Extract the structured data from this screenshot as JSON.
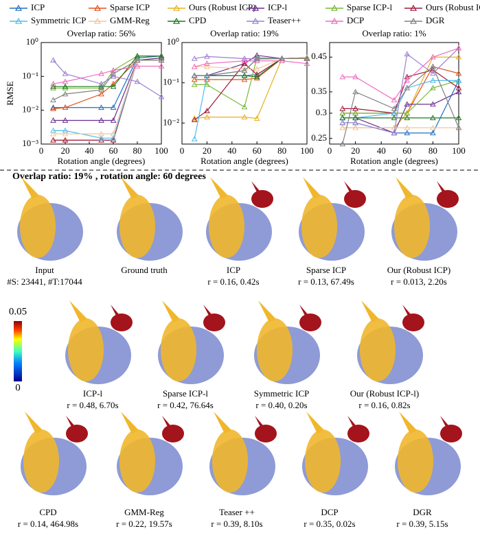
{
  "chart_data": [
    {
      "type": "line",
      "title": "Overlap ratio: 56%",
      "y_label": "RMSE",
      "x_label": "Rotation angle (degrees)",
      "log_y": true,
      "x": [
        10,
        20,
        50,
        60,
        80,
        100
      ],
      "xlim": [
        0,
        100
      ],
      "xticks": [
        0,
        20,
        40,
        60,
        80,
        100
      ],
      "ylim": [
        0.001,
        1
      ],
      "yticks": [
        {
          "value": 0.001,
          "label": "10⁻³"
        },
        {
          "value": 0.01,
          "label": "10⁻²"
        },
        {
          "value": 0.1,
          "label": "10⁻¹"
        },
        {
          "value": 1,
          "label": "10⁰"
        }
      ],
      "series": [
        {
          "name": "ICP",
          "color": "#1f6fc0",
          "values": [
            0.012,
            0.012,
            0.012,
            0.012,
            0.35,
            0.4
          ]
        },
        {
          "name": "Sparse ICP",
          "color": "#e0521e",
          "values": [
            0.011,
            0.012,
            0.03,
            0.06,
            0.3,
            0.35
          ]
        },
        {
          "name": "Ours (Robust ICP)",
          "color": "#e8b020",
          "values": [
            0.0013,
            0.0013,
            0.0013,
            0.0013,
            0.3,
            0.3
          ]
        },
        {
          "name": "ICP-l",
          "color": "#6a2d8f",
          "values": [
            0.005,
            0.005,
            0.005,
            0.005,
            0.3,
            0.35
          ]
        },
        {
          "name": "Sparse ICP-l",
          "color": "#78b83a",
          "values": [
            0.045,
            0.045,
            0.045,
            0.15,
            0.4,
            0.4
          ]
        },
        {
          "name": "Ours (Robust ICP-l)",
          "color": "#a0183a",
          "values": [
            0.0013,
            0.0013,
            0.0013,
            0.0013,
            0.3,
            0.3
          ]
        },
        {
          "name": "Symmetric ICP",
          "color": "#4dbeee",
          "values": [
            0.0025,
            0.0025,
            0.0015,
            0.0015,
            0.3,
            0.3
          ]
        },
        {
          "name": "GMM-Reg",
          "color": "#f5c49a",
          "values": [
            0.002,
            0.002,
            0.002,
            0.002,
            0.3,
            0.3
          ]
        },
        {
          "name": "CPD",
          "color": "#1a7a1a",
          "values": [
            0.05,
            0.05,
            0.05,
            0.05,
            0.4,
            0.4
          ]
        },
        {
          "name": "Teaser++",
          "color": "#9a80d0",
          "values": [
            0.3,
            0.12,
            0.06,
            0.1,
            0.07,
            0.025
          ]
        },
        {
          "name": "DCP",
          "color": "#f06cc0",
          "values": [
            0.06,
            0.07,
            0.12,
            0.15,
            0.2,
            0.2
          ]
        },
        {
          "name": "DGR",
          "color": "#808080",
          "values": [
            0.02,
            0.03,
            0.04,
            0.12,
            0.3,
            0.3
          ]
        }
      ]
    },
    {
      "type": "line",
      "title": "Overlap ratio: 19%",
      "x_label": "Rotation angle (degrees)",
      "log_y": true,
      "x": [
        10,
        20,
        50,
        60,
        80,
        100
      ],
      "xlim": [
        0,
        100
      ],
      "xticks": [
        0,
        20,
        40,
        60,
        80,
        100
      ],
      "ylim": [
        0.003,
        1
      ],
      "yticks": [
        {
          "value": 0.01,
          "label": "10⁻²"
        },
        {
          "value": 0.1,
          "label": "10⁻¹"
        },
        {
          "value": 1,
          "label": "10⁰"
        }
      ],
      "series": [
        {
          "values": [
            0.15,
            0.15,
            0.15,
            0.16,
            0.4,
            0.42
          ]
        },
        {
          "values": [
            0.12,
            0.12,
            0.12,
            0.13,
            0.4,
            0.42
          ]
        },
        {
          "values": [
            0.013,
            0.014,
            0.014,
            0.013,
            0.4,
            0.42
          ]
        },
        {
          "values": [
            0.15,
            0.15,
            0.3,
            0.48,
            0.4,
            0.4
          ]
        },
        {
          "values": [
            0.09,
            0.09,
            0.025,
            0.42,
            0.4,
            0.4
          ]
        },
        {
          "values": [
            0.012,
            0.02,
            0.3,
            0.16,
            0.4,
            0.4
          ]
        },
        {
          "values": [
            0.004,
            0.15,
            0.2,
            0.4,
            0.4,
            0.4
          ]
        },
        {
          "values": [
            0.25,
            0.25,
            0.22,
            0.22,
            0.4,
            0.4
          ]
        },
        {
          "values": [
            0.15,
            0.15,
            0.15,
            0.14,
            0.4,
            0.4
          ]
        },
        {
          "values": [
            0.4,
            0.45,
            0.4,
            0.39,
            0.4,
            0.4
          ]
        },
        {
          "values": [
            0.25,
            0.3,
            0.35,
            0.35,
            0.35,
            0.3
          ]
        },
        {
          "values": [
            0.15,
            0.15,
            0.2,
            0.39,
            0.4,
            0.4
          ]
        }
      ]
    },
    {
      "type": "line",
      "title": "Overlap ratio: 1%",
      "x_label": "Rotation angle (degrees)",
      "log_y": true,
      "x": [
        10,
        20,
        50,
        60,
        80,
        100
      ],
      "xlim": [
        0,
        100
      ],
      "xticks": [
        0,
        20,
        40,
        60,
        80,
        100
      ],
      "ylim": [
        0.24,
        0.5
      ],
      "yticks": [
        0.25,
        0.3,
        0.35,
        0.45
      ],
      "series": [
        {
          "values": [
            0.28,
            0.28,
            0.26,
            0.26,
            0.26,
            0.38
          ]
        },
        {
          "values": [
            0.3,
            0.3,
            0.3,
            0.3,
            0.42,
            0.4
          ]
        },
        {
          "values": [
            0.27,
            0.27,
            0.27,
            0.3,
            0.45,
            0.45
          ]
        },
        {
          "values": [
            0.29,
            0.29,
            0.26,
            0.32,
            0.32,
            0.35
          ]
        },
        {
          "values": [
            0.3,
            0.3,
            0.3,
            0.3,
            0.36,
            0.38
          ]
        },
        {
          "values": [
            0.31,
            0.31,
            0.3,
            0.39,
            0.41,
            0.36
          ]
        },
        {
          "values": [
            0.29,
            0.29,
            0.3,
            0.36,
            0.38,
            0.38
          ]
        },
        {
          "values": [
            0.27,
            0.27,
            0.27,
            0.27,
            0.27,
            0.27
          ]
        },
        {
          "values": [
            0.29,
            0.29,
            0.29,
            0.29,
            0.29,
            0.29
          ]
        },
        {
          "values": [
            0.28,
            0.28,
            0.26,
            0.46,
            0.4,
            0.48
          ]
        },
        {
          "values": [
            0.39,
            0.39,
            0.33,
            0.38,
            0.45,
            0.48
          ]
        },
        {
          "values": [
            0.24,
            0.35,
            0.31,
            0.36,
            0.42,
            0.27
          ]
        }
      ]
    }
  ],
  "figure": {
    "heading": "Overlap ratio: 19% , rotation angle: 60 degrees",
    "colorbar": {
      "max": 0.05,
      "min": 0
    },
    "panels": [
      {
        "label": "Input",
        "result": "#S: 23441, #T:17044"
      },
      {
        "label": "Ground truth"
      },
      {
        "label": "ICP",
        "result": "r = 0.16, 0.42s"
      },
      {
        "label": "Sparse ICP",
        "result": "r = 0.13, 67.49s"
      },
      {
        "label": "Our (Robust ICP)",
        "result": "r = 0.013, 2.20s"
      },
      {
        "label": "ICP-l",
        "result": "r = 0.48, 6.70s"
      },
      {
        "label": "Sparse ICP-l",
        "result": "r = 0.42, 76.64s"
      },
      {
        "label": "Symmetric ICP",
        "result": "r = 0.40, 0.20s"
      },
      {
        "label": "Our (Robust ICP-l)",
        "result": "r = 0.16, 0.82s"
      },
      {
        "label": "CPD",
        "result": "r = 0.14, 464.98s"
      },
      {
        "label": "GMM-Reg",
        "result": "r = 0.22, 19.57s"
      },
      {
        "label": "Teaser ++",
        "result": "r = 0.39, 8.10s"
      },
      {
        "label": "DCP",
        "result": "r = 0.35, 0.02s"
      },
      {
        "label": "DGR",
        "result": "r = 0.39, 5.15s"
      }
    ]
  }
}
